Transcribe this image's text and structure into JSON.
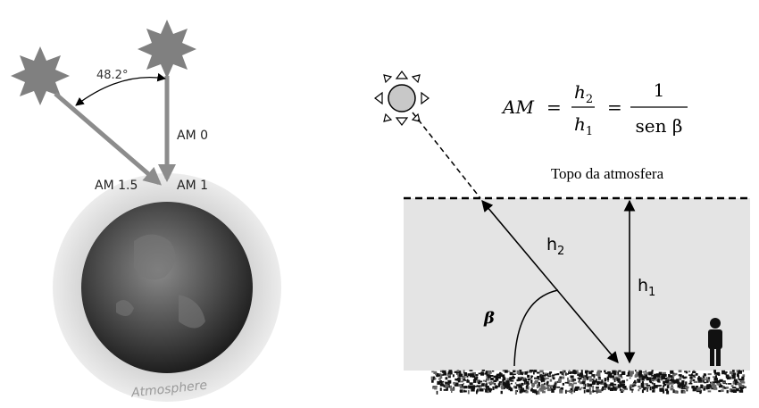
{
  "left": {
    "angle_label": "48.2°",
    "am0": "AM 0",
    "am15": "AM 1.5",
    "am1": "AM 1",
    "atmosphere": "Atmosphere"
  },
  "right": {
    "formula": {
      "lhs": "AM",
      "eq": "=",
      "frac1_num": {
        "base": "h",
        "sub": "2"
      },
      "frac1_den": {
        "base": "h",
        "sub": "1"
      },
      "eq2": "=",
      "frac2_num": "1",
      "frac2_den": "sen β"
    },
    "top_label": "Topo da atmosfera",
    "h2": {
      "base": "h",
      "sub": "2"
    },
    "h1": {
      "base": "h",
      "sub": "1"
    },
    "beta": "β"
  }
}
